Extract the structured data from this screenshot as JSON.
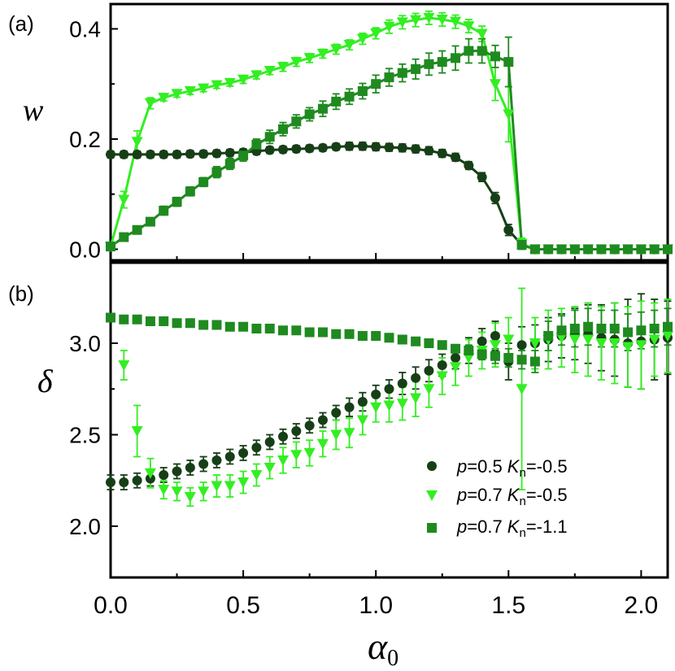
{
  "chart_data": [
    {
      "type": "line",
      "panel_label": "(a)",
      "ylabel": "w",
      "xlabel": "",
      "xlim": [
        0,
        2.1
      ],
      "ylim": [
        -0.02,
        0.445
      ],
      "xticks": [
        "0.0",
        "0.5",
        "1.0",
        "1.5",
        "2.0"
      ],
      "yticks": [
        "0.0",
        "0.2",
        "0.4"
      ],
      "series": [
        {
          "name": "p=0.5 Kn=-0.5",
          "marker": "circle",
          "color": "#173f17",
          "line": true,
          "x": [
            0.0,
            0.05,
            0.1,
            0.15,
            0.2,
            0.25,
            0.3,
            0.35,
            0.4,
            0.45,
            0.5,
            0.55,
            0.6,
            0.65,
            0.7,
            0.75,
            0.8,
            0.85,
            0.9,
            0.95,
            1.0,
            1.05,
            1.1,
            1.15,
            1.2,
            1.25,
            1.3,
            1.35,
            1.4,
            1.45,
            1.5,
            1.55,
            1.6,
            1.65,
            1.7,
            1.75,
            1.8,
            1.85,
            1.9,
            1.95,
            2.0,
            2.05,
            2.1
          ],
          "y": [
            0.172,
            0.172,
            0.172,
            0.172,
            0.172,
            0.172,
            0.173,
            0.173,
            0.174,
            0.175,
            0.176,
            0.178,
            0.18,
            0.181,
            0.182,
            0.183,
            0.184,
            0.186,
            0.187,
            0.187,
            0.186,
            0.185,
            0.184,
            0.182,
            0.179,
            0.174,
            0.167,
            0.152,
            0.131,
            0.093,
            0.035,
            0.008,
            0.0,
            0.0,
            0.0,
            0.0,
            0.0,
            0.0,
            0.0,
            0.0,
            0.0,
            0.0,
            0.0
          ],
          "err": [
            0.006,
            0.006,
            0.006,
            0.006,
            0.006,
            0.006,
            0.006,
            0.006,
            0.006,
            0.006,
            0.006,
            0.006,
            0.006,
            0.006,
            0.006,
            0.006,
            0.006,
            0.006,
            0.007,
            0.007,
            0.007,
            0.007,
            0.007,
            0.007,
            0.007,
            0.007,
            0.007,
            0.007,
            0.008,
            0.01,
            0.01,
            0.006,
            0.004,
            0.004,
            0.004,
            0.004,
            0.004,
            0.004,
            0.004,
            0.004,
            0.004,
            0.004,
            0.004
          ]
        },
        {
          "name": "p=0.7 Kn=-0.5",
          "marker": "triangle-down",
          "color": "#33ee22",
          "line": true,
          "x": [
            0.0,
            0.05,
            0.1,
            0.15,
            0.2,
            0.25,
            0.3,
            0.35,
            0.4,
            0.45,
            0.5,
            0.55,
            0.6,
            0.65,
            0.7,
            0.75,
            0.8,
            0.85,
            0.9,
            0.95,
            1.0,
            1.05,
            1.1,
            1.15,
            1.2,
            1.25,
            1.3,
            1.35,
            1.4,
            1.45,
            1.5,
            1.55,
            1.6,
            1.65,
            1.7,
            1.75,
            1.8,
            1.85,
            1.9,
            1.95,
            2.0,
            2.05,
            2.1
          ],
          "y": [
            0.005,
            0.09,
            0.195,
            0.265,
            0.275,
            0.282,
            0.287,
            0.292,
            0.298,
            0.302,
            0.308,
            0.316,
            0.324,
            0.331,
            0.34,
            0.347,
            0.355,
            0.363,
            0.371,
            0.382,
            0.392,
            0.404,
            0.412,
            0.416,
            0.42,
            0.417,
            0.413,
            0.405,
            0.391,
            0.3,
            0.245,
            0.01,
            0.0,
            0.0,
            0.0,
            0.0,
            0.0,
            0.0,
            0.0,
            0.0,
            0.0,
            0.0,
            0.0
          ],
          "err": [
            0.004,
            0.015,
            0.02,
            0.01,
            0.006,
            0.006,
            0.006,
            0.006,
            0.006,
            0.006,
            0.007,
            0.007,
            0.007,
            0.008,
            0.008,
            0.008,
            0.008,
            0.009,
            0.009,
            0.01,
            0.01,
            0.012,
            0.012,
            0.012,
            0.012,
            0.012,
            0.012,
            0.012,
            0.014,
            0.03,
            0.05,
            0.01,
            0.004,
            0.004,
            0.004,
            0.004,
            0.004,
            0.004,
            0.004,
            0.004,
            0.004,
            0.004,
            0.004
          ]
        },
        {
          "name": "p=0.7 Kn=-1.1",
          "marker": "square",
          "color": "#1f8a1f",
          "line": true,
          "x": [
            0.0,
            0.05,
            0.1,
            0.15,
            0.2,
            0.25,
            0.3,
            0.35,
            0.4,
            0.45,
            0.5,
            0.55,
            0.6,
            0.65,
            0.7,
            0.75,
            0.8,
            0.85,
            0.9,
            0.95,
            1.0,
            1.05,
            1.1,
            1.15,
            1.2,
            1.25,
            1.3,
            1.35,
            1.4,
            1.45,
            1.5,
            1.55,
            1.6,
            1.65,
            1.7,
            1.75,
            1.8,
            1.85,
            1.9,
            1.95,
            2.0,
            2.05,
            2.1
          ],
          "y": [
            0.005,
            0.022,
            0.035,
            0.05,
            0.07,
            0.086,
            0.105,
            0.122,
            0.14,
            0.155,
            0.17,
            0.19,
            0.204,
            0.218,
            0.232,
            0.245,
            0.255,
            0.268,
            0.277,
            0.287,
            0.3,
            0.312,
            0.32,
            0.327,
            0.336,
            0.34,
            0.347,
            0.36,
            0.36,
            0.35,
            0.34,
            0.008,
            0.0,
            0.0,
            0.0,
            0.0,
            0.0,
            0.0,
            0.0,
            0.0,
            0.0,
            0.0,
            0.0
          ],
          "err": [
            0.004,
            0.006,
            0.006,
            0.006,
            0.008,
            0.008,
            0.008,
            0.008,
            0.01,
            0.01,
            0.01,
            0.01,
            0.012,
            0.012,
            0.012,
            0.012,
            0.014,
            0.014,
            0.014,
            0.014,
            0.016,
            0.016,
            0.016,
            0.018,
            0.02,
            0.02,
            0.022,
            0.022,
            0.022,
            0.02,
            0.045,
            0.008,
            0.004,
            0.004,
            0.004,
            0.004,
            0.004,
            0.004,
            0.004,
            0.004,
            0.004,
            0.004,
            0.004
          ]
        }
      ]
    },
    {
      "type": "scatter",
      "panel_label": "(b)",
      "ylabel": "δ",
      "xlabel": "α0",
      "xlabel_base": "α",
      "xlabel_sub": "0",
      "xlim": [
        0,
        2.1
      ],
      "ylim": [
        1.72,
        3.44
      ],
      "xticks": [
        "0.0",
        "0.5",
        "1.0",
        "1.5",
        "2.0"
      ],
      "yticks": [
        "2.0",
        "2.5",
        "3.0"
      ],
      "legend_position": "lower-right",
      "legend": [
        {
          "p_label": "p",
          "p_text": "=0.5 ",
          "k_label": "K",
          "k_sub": "n",
          "k_text": "=-0.5"
        },
        {
          "p_label": "p",
          "p_text": "=0.7 ",
          "k_label": "K",
          "k_sub": "n",
          "k_text": "=-0.5"
        },
        {
          "p_label": "p",
          "p_text": "=0.7 ",
          "k_label": "K",
          "k_sub": "n",
          "k_text": "=-1.1"
        }
      ],
      "series": [
        {
          "name": "p=0.5 Kn=-0.5",
          "marker": "circle",
          "color": "#173f17",
          "line": false,
          "x": [
            0.0,
            0.05,
            0.1,
            0.15,
            0.2,
            0.25,
            0.3,
            0.35,
            0.4,
            0.45,
            0.5,
            0.55,
            0.6,
            0.65,
            0.7,
            0.75,
            0.8,
            0.85,
            0.9,
            0.95,
            1.0,
            1.05,
            1.1,
            1.15,
            1.2,
            1.25,
            1.3,
            1.35,
            1.4,
            1.45,
            1.5,
            1.55,
            1.6,
            1.65,
            1.7,
            1.75,
            1.8,
            1.85,
            1.9,
            1.95,
            2.0,
            2.05,
            2.1
          ],
          "y": [
            2.24,
            2.24,
            2.25,
            2.26,
            2.28,
            2.3,
            2.32,
            2.34,
            2.36,
            2.38,
            2.4,
            2.43,
            2.46,
            2.49,
            2.52,
            2.55,
            2.58,
            2.62,
            2.65,
            2.68,
            2.72,
            2.75,
            2.78,
            2.81,
            2.85,
            2.88,
            2.92,
            2.96,
            3.01,
            3.04,
            2.9,
            2.99,
            3.0,
            3.02,
            3.04,
            3.05,
            3.05,
            3.03,
            3.02,
            3.0,
            3.01,
            3.02,
            3.03
          ],
          "err": [
            0.04,
            0.04,
            0.04,
            0.04,
            0.04,
            0.04,
            0.04,
            0.04,
            0.04,
            0.04,
            0.04,
            0.04,
            0.04,
            0.04,
            0.04,
            0.04,
            0.04,
            0.04,
            0.05,
            0.05,
            0.05,
            0.05,
            0.06,
            0.06,
            0.06,
            0.06,
            0.06,
            0.07,
            0.07,
            0.08,
            0.1,
            0.1,
            0.1,
            0.12,
            0.12,
            0.14,
            0.16,
            0.18,
            0.2,
            0.24,
            0.26,
            0.22,
            0.2
          ]
        },
        {
          "name": "p=0.7 Kn=-0.5",
          "marker": "triangle-down",
          "color": "#33ee22",
          "line": false,
          "x": [
            0.05,
            0.1,
            0.15,
            0.2,
            0.25,
            0.3,
            0.35,
            0.4,
            0.45,
            0.5,
            0.55,
            0.6,
            0.65,
            0.7,
            0.75,
            0.8,
            0.85,
            0.9,
            0.95,
            1.0,
            1.05,
            1.1,
            1.15,
            1.2,
            1.25,
            1.3,
            1.35,
            1.4,
            1.45,
            1.5,
            1.55,
            1.6,
            1.65,
            1.7,
            1.75,
            1.8,
            1.85,
            1.9,
            1.95,
            2.0,
            2.05,
            2.1
          ],
          "y": [
            2.88,
            2.52,
            2.29,
            2.2,
            2.19,
            2.16,
            2.19,
            2.22,
            2.22,
            2.24,
            2.28,
            2.32,
            2.36,
            2.39,
            2.4,
            2.45,
            2.5,
            2.51,
            2.58,
            2.65,
            2.66,
            2.67,
            2.7,
            2.75,
            2.82,
            2.87,
            2.92,
            2.96,
            2.99,
            3.02,
            2.75,
            3.0,
            3.02,
            3.03,
            3.02,
            3.02,
            3.0,
            3.0,
            2.98,
            2.99,
            3.02,
            3.04
          ],
          "err": [
            0.08,
            0.14,
            0.08,
            0.05,
            0.05,
            0.05,
            0.05,
            0.06,
            0.06,
            0.06,
            0.06,
            0.06,
            0.07,
            0.07,
            0.07,
            0.07,
            0.08,
            0.08,
            0.08,
            0.08,
            0.09,
            0.09,
            0.1,
            0.1,
            0.1,
            0.1,
            0.1,
            0.1,
            0.12,
            0.12,
            0.55,
            0.14,
            0.16,
            0.16,
            0.18,
            0.2,
            0.2,
            0.22,
            0.22,
            0.24,
            0.2,
            0.2
          ]
        },
        {
          "name": "p=0.7 Kn=-1.1",
          "marker": "square",
          "color": "#1f8a1f",
          "line": false,
          "x": [
            0.0,
            0.05,
            0.1,
            0.15,
            0.2,
            0.25,
            0.3,
            0.35,
            0.4,
            0.45,
            0.5,
            0.55,
            0.6,
            0.65,
            0.7,
            0.75,
            0.8,
            0.85,
            0.9,
            0.95,
            1.0,
            1.05,
            1.1,
            1.15,
            1.2,
            1.25,
            1.3,
            1.35,
            1.4,
            1.45,
            1.5,
            1.55,
            1.6,
            1.65,
            1.7,
            1.75,
            1.8,
            1.85,
            1.9,
            1.95,
            2.0,
            2.05,
            2.1
          ],
          "y": [
            3.14,
            3.13,
            3.13,
            3.12,
            3.12,
            3.11,
            3.11,
            3.1,
            3.1,
            3.09,
            3.09,
            3.08,
            3.08,
            3.07,
            3.07,
            3.06,
            3.06,
            3.05,
            3.05,
            3.04,
            3.04,
            3.03,
            3.02,
            3.01,
            3.0,
            2.99,
            2.97,
            2.96,
            2.94,
            2.93,
            2.92,
            2.91,
            2.9,
            3.04,
            3.07,
            3.08,
            3.09,
            3.08,
            3.08,
            3.06,
            3.07,
            3.08,
            3.09
          ],
          "err": [
            0.02,
            0.02,
            0.02,
            0.02,
            0.02,
            0.02,
            0.02,
            0.02,
            0.02,
            0.02,
            0.02,
            0.02,
            0.02,
            0.02,
            0.02,
            0.02,
            0.02,
            0.02,
            0.02,
            0.02,
            0.02,
            0.02,
            0.02,
            0.02,
            0.02,
            0.02,
            0.02,
            0.03,
            0.03,
            0.04,
            0.05,
            0.05,
            0.06,
            0.08,
            0.08,
            0.1,
            0.1,
            0.1,
            0.1,
            0.1,
            0.1,
            0.1,
            0.1
          ]
        }
      ]
    }
  ]
}
